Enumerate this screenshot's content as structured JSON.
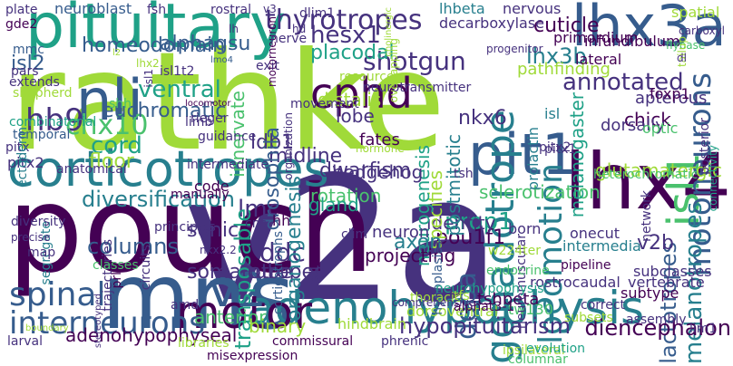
{
  "background": "#ffffff",
  "palette": [
    "#440154",
    "#46327e",
    "#365c8d",
    "#277f8e",
    "#1fa187",
    "#4ac16d",
    "#a0da39"
  ],
  "words": [
    {
      "text": "rathke",
      "color": "#a0da39"
    },
    {
      "text": "v2a",
      "color": "#46327e"
    },
    {
      "text": "pouch",
      "color": "#440154"
    },
    {
      "text": "mns",
      "color": "#365c8d"
    },
    {
      "text": "lhx4",
      "color": "#440154"
    },
    {
      "text": "lhx3a",
      "color": "#365c8d"
    },
    {
      "text": "pituitary",
      "color": "#1fa187"
    },
    {
      "text": "corticotropes",
      "color": "#277f8e"
    },
    {
      "text": "adenohypophysis",
      "color": "#277f8e"
    },
    {
      "text": "pit1",
      "color": "#365c8d"
    },
    {
      "text": "nli",
      "color": "#365c8d"
    },
    {
      "text": "motor",
      "color": "#440154"
    },
    {
      "text": "v2",
      "color": "#365c8d"
    },
    {
      "text": "cphd",
      "color": "#440154"
    },
    {
      "text": "isl1",
      "color": "#4ac16d"
    },
    {
      "text": "gonadotrope",
      "color": "#277f8e"
    },
    {
      "text": "locomotion",
      "color": "#277f8e"
    },
    {
      "text": "motoneurons",
      "color": "#365c8d"
    },
    {
      "text": "interneurons",
      "color": "#365c8d"
    },
    {
      "text": "spinal",
      "color": "#365c8d"
    },
    {
      "text": "hb9",
      "color": "#46327e"
    },
    {
      "text": "dopa",
      "color": "#365c8d"
    },
    {
      "text": "thyrotropes",
      "color": "#46327e"
    },
    {
      "text": "hesx1",
      "color": "#46327e"
    },
    {
      "text": "homeodomain",
      "color": "#365c8d"
    },
    {
      "text": "diversification",
      "color": "#277f8e"
    },
    {
      "text": "ventral",
      "color": "#1fa187"
    },
    {
      "text": "cord",
      "color": "#1fa187"
    },
    {
      "text": "chx10",
      "color": "#4ac16d"
    },
    {
      "text": "lmc",
      "color": "#46327e"
    },
    {
      "text": "columns",
      "color": "#365c8d"
    },
    {
      "text": "isl2",
      "color": "#365c8d"
    },
    {
      "text": "adenohypophyseal",
      "color": "#440154"
    },
    {
      "text": "somatotropes",
      "color": "#46327e"
    },
    {
      "text": "ddc",
      "color": "#46327e"
    },
    {
      "text": "prop1",
      "color": "#1fa187"
    },
    {
      "text": "pou1f1",
      "color": "#440154"
    },
    {
      "text": "shotgun",
      "color": "#46327e"
    },
    {
      "text": "placodal",
      "color": "#1fa187"
    },
    {
      "text": "annotated",
      "color": "#46327e"
    },
    {
      "text": "lhx3b",
      "color": "#277f8e"
    },
    {
      "text": "nkx6",
      "color": "#46327e"
    },
    {
      "text": "melanotropes",
      "color": "#277f8e"
    },
    {
      "text": "lactotropes",
      "color": "#365c8d"
    },
    {
      "text": "hypopituitarism",
      "color": "#46327e"
    },
    {
      "text": "diencephalon",
      "color": "#440154"
    },
    {
      "text": "v2b",
      "color": "#46327e"
    },
    {
      "text": "euchromatic",
      "color": "#365c8d"
    },
    {
      "text": "alphagsu",
      "color": "#365c8d"
    },
    {
      "text": "cuticle",
      "color": "#440154"
    },
    {
      "text": "identity",
      "color": "#46327e"
    },
    {
      "text": "sclerotization",
      "color": "#4ac16d"
    },
    {
      "text": "dwarfism",
      "color": "#46327e"
    },
    {
      "text": "distalis",
      "color": "#a0da39"
    },
    {
      "text": "midline",
      "color": "#46327e"
    },
    {
      "text": "ldb1",
      "color": "#46327e"
    },
    {
      "text": "transposable",
      "color": "#1fa187"
    },
    {
      "text": "organogenesis",
      "color": "#277f8e"
    },
    {
      "text": "rotation",
      "color": "#4ac16d"
    },
    {
      "text": "tube",
      "color": "#46327e"
    },
    {
      "text": "floor",
      "color": "#a0da39"
    },
    {
      "text": "sonic",
      "color": "#46327e"
    },
    {
      "text": "glutamatergic",
      "color": "#a0da39"
    },
    {
      "text": "chick",
      "color": "#440154"
    },
    {
      "text": "apterous",
      "color": "#46327e"
    },
    {
      "text": "melanogaster",
      "color": "#1fa187"
    },
    {
      "text": "innervate",
      "color": "#4ac16d"
    },
    {
      "text": "drosophila",
      "color": "#365c8d"
    },
    {
      "text": "specifies",
      "color": "#a0da39"
    },
    {
      "text": "postmitotic",
      "color": "#277f8e"
    },
    {
      "text": "neurogenesis",
      "color": "#1fa187"
    },
    {
      "text": "projecting",
      "color": "#440154"
    },
    {
      "text": "axon",
      "color": "#277f8e"
    },
    {
      "text": "anterior",
      "color": "#4ac16d"
    },
    {
      "text": "binary",
      "color": "#a0da39"
    },
    {
      "text": "hindbrain",
      "color": "#a0da39"
    },
    {
      "text": "dorsoventral",
      "color": "#a0da39"
    },
    {
      "text": "tshbeta",
      "color": "#440154"
    },
    {
      "text": "neuron",
      "color": "#46327e"
    },
    {
      "text": "gland",
      "color": "#1fa187"
    },
    {
      "text": "hedgehog",
      "color": "#46327e"
    },
    {
      "text": "lobe",
      "color": "#46327e"
    },
    {
      "text": "fates",
      "color": "#440154"
    },
    {
      "text": "dorsally",
      "color": "#46327e"
    },
    {
      "text": "decarboxylase",
      "color": "#46327e"
    },
    {
      "text": "lhbeta",
      "color": "#277f8e"
    },
    {
      "text": "nervous",
      "color": "#46327e"
    },
    {
      "text": "primordium",
      "color": "#440154"
    },
    {
      "text": "pathfinding",
      "color": "#a0da39"
    },
    {
      "text": "lateral",
      "color": "#440154"
    },
    {
      "text": "infundibulum",
      "color": "#440154"
    },
    {
      "text": "isl",
      "color": "#277f8e"
    },
    {
      "text": "prolactin",
      "color": "#277f8e"
    },
    {
      "text": "foxp1",
      "color": "#440154"
    },
    {
      "text": "optic",
      "color": "#4ac16d"
    },
    {
      "text": "posterior",
      "color": "#46327e"
    },
    {
      "text": "connectivity",
      "color": "#1fa187"
    },
    {
      "text": "heterochromatic",
      "color": "#4ac16d"
    },
    {
      "text": "born",
      "color": "#46327e"
    },
    {
      "text": "onecut",
      "color": "#46327e"
    },
    {
      "text": "intermedia",
      "color": "#277f8e"
    },
    {
      "text": "subclasses",
      "color": "#46327e"
    },
    {
      "text": "subtype",
      "color": "#440154"
    },
    {
      "text": "vertebrate",
      "color": "#46327e"
    },
    {
      "text": "tw130",
      "color": "#4ac16d"
    },
    {
      "text": "rostrocaudal",
      "color": "#46327e"
    },
    {
      "text": "pipeline",
      "color": "#440154"
    },
    {
      "text": "neuromuscular",
      "color": "#46327e"
    },
    {
      "text": "hypoplasia",
      "color": "#365c8d"
    },
    {
      "text": "neurohypophysis",
      "color": "#1fa187"
    },
    {
      "text": "w224ter",
      "color": "#a0da39"
    },
    {
      "text": "tfs",
      "color": "#a0da39"
    },
    {
      "text": "endocrine",
      "color": "#4ac16d"
    },
    {
      "text": "thoracic",
      "color": "#a0da39"
    },
    {
      "text": "alphat3-1",
      "color": "#440154"
    },
    {
      "text": "ipsilateral",
      "color": "#a0da39"
    },
    {
      "text": "columnar",
      "color": "#4ac16d"
    },
    {
      "text": "evolution",
      "color": "#1fa187"
    },
    {
      "text": "phrenic",
      "color": "#46327e"
    },
    {
      "text": "libraries",
      "color": "#a0da39"
    },
    {
      "text": "misexpression",
      "color": "#440154"
    },
    {
      "text": "commissural",
      "color": "#440154"
    },
    {
      "text": "pitx",
      "color": "#46327e"
    },
    {
      "text": "pitx1",
      "color": "#46327e"
    },
    {
      "text": "pitx2",
      "color": "#46327e"
    },
    {
      "text": "ectoderm",
      "color": "#277f8e"
    },
    {
      "text": "combinatorial",
      "color": "#1fa187"
    },
    {
      "text": "temporal",
      "color": "#365c8d"
    },
    {
      "text": "shepherd",
      "color": "#a0da39"
    },
    {
      "text": "extends",
      "color": "#46327e"
    },
    {
      "text": "pars",
      "color": "#46327e"
    },
    {
      "text": "mmc",
      "color": "#365c8d"
    },
    {
      "text": "gde2",
      "color": "#440154"
    },
    {
      "text": "plate",
      "color": "#46327e"
    },
    {
      "text": "neuroblast",
      "color": "#365c8d"
    },
    {
      "text": "fsh",
      "color": "#46327e"
    },
    {
      "text": "rostral",
      "color": "#46327e"
    },
    {
      "text": "dlim1",
      "color": "#46327e"
    },
    {
      "text": "motorneuron",
      "color": "#440154"
    },
    {
      "text": "nerve",
      "color": "#46327e"
    },
    {
      "text": "exit",
      "color": "#46327e"
    },
    {
      "text": "lmo4",
      "color": "#365c8d"
    },
    {
      "text": "isl1",
      "color": "#46327e"
    },
    {
      "text": "isl1t2",
      "color": "#46327e"
    },
    {
      "text": "shh",
      "color": "#4ac16d"
    },
    {
      "text": "locomotor",
      "color": "#440154"
    },
    {
      "text": "limb",
      "color": "#46327e"
    },
    {
      "text": "guidance",
      "color": "#46327e"
    },
    {
      "text": "rieger",
      "color": "#46327e"
    },
    {
      "text": "anatomical",
      "color": "#46327e"
    },
    {
      "text": "intermediate",
      "color": "#46327e"
    },
    {
      "text": "movement",
      "color": "#46327e"
    },
    {
      "text": "organization",
      "color": "#46327e"
    },
    {
      "text": "resource",
      "color": "#a0da39"
    },
    {
      "text": "neurotransmitter",
      "color": "#46327e"
    },
    {
      "text": "progenitor",
      "color": "#46327e"
    },
    {
      "text": "overlapping",
      "color": "#a0da39"
    },
    {
      "text": "spatial",
      "color": "#a0da39"
    },
    {
      "text": "flybase",
      "color": "#4ac16d"
    },
    {
      "text": "carboxyl",
      "color": "#46327e"
    },
    {
      "text": "code",
      "color": "#440154"
    },
    {
      "text": "manually",
      "color": "#440154"
    },
    {
      "text": "principles",
      "color": "#46327e"
    },
    {
      "text": "circuits",
      "color": "#46327e"
    },
    {
      "text": "prl",
      "color": "#440154"
    },
    {
      "text": "trajectories",
      "color": "#46327e"
    },
    {
      "text": "segregate",
      "color": "#277f8e"
    },
    {
      "text": "diversity",
      "color": "#46327e"
    },
    {
      "text": "precise",
      "color": "#46327e"
    },
    {
      "text": "map",
      "color": "#46327e"
    },
    {
      "text": "classes",
      "color": "#4ac16d"
    },
    {
      "text": "amd",
      "color": "#46327e"
    },
    {
      "text": "nkx2.2",
      "color": "#46327e"
    },
    {
      "text": "cns",
      "color": "#46327e"
    },
    {
      "text": "hh",
      "color": "#440154"
    },
    {
      "text": "corticotrophs",
      "color": "#365c8d"
    },
    {
      "text": "islet1",
      "color": "#46327e"
    },
    {
      "text": "clim",
      "color": "#46327e"
    },
    {
      "text": "p2",
      "color": "#46327e"
    },
    {
      "text": "comprehensive",
      "color": "#46327e"
    },
    {
      "text": "larval",
      "color": "#46327e"
    },
    {
      "text": "stereotyped",
      "color": "#46327e"
    },
    {
      "text": "correct",
      "color": "#46327e"
    },
    {
      "text": "subsets",
      "color": "#a0da39"
    },
    {
      "text": "assembly",
      "color": "#46327e"
    },
    {
      "text": "lim1",
      "color": "#46327e"
    },
    {
      "text": "network",
      "color": "#46327e"
    },
    {
      "text": "tsh",
      "color": "#46327e"
    },
    {
      "text": "hormone",
      "color": "#a0da39"
    },
    {
      "text": "v3",
      "color": "#46327e"
    },
    {
      "text": "lh",
      "color": "#46327e"
    },
    {
      "text": "hd",
      "color": "#46327e"
    },
    {
      "text": "l2",
      "color": "#a0da39"
    },
    {
      "text": "lhx2",
      "color": "#a0da39"
    },
    {
      "text": "boundary",
      "color": "#a0da39"
    },
    {
      "text": "pitx2",
      "color": "#46327e"
    },
    {
      "text": "tailup",
      "color": "#a0da39"
    },
    {
      "text": "cholinergic",
      "color": "#a0da39"
    },
    {
      "text": "dl",
      "color": "#46327e"
    }
  ]
}
